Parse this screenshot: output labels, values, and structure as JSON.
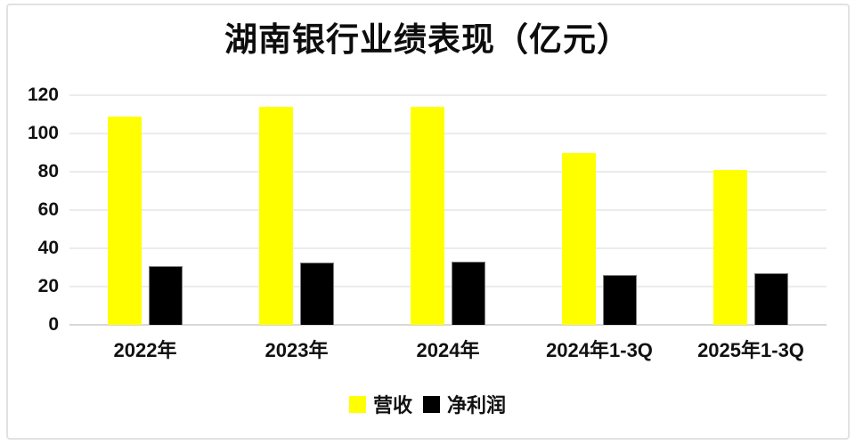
{
  "chart_data": {
    "type": "bar",
    "title": "湖南银行业绩表现（亿元）",
    "categories": [
      "2022年",
      "2023年",
      "2024年",
      "2024年1-3Q",
      "2025年1-3Q"
    ],
    "series": [
      {
        "name": "营收",
        "color": "#ffff00",
        "values": [
          109,
          114,
          114,
          90,
          81
        ]
      },
      {
        "name": "净利润",
        "color": "#000000",
        "values": [
          30.5,
          32.5,
          33,
          26,
          27
        ]
      }
    ],
    "xlabel": "",
    "ylabel": "",
    "ylim": [
      0,
      120
    ],
    "yticks": [
      0,
      20,
      40,
      60,
      80,
      100,
      120
    ],
    "grid": "horizontal",
    "legend_position": "bottom"
  }
}
